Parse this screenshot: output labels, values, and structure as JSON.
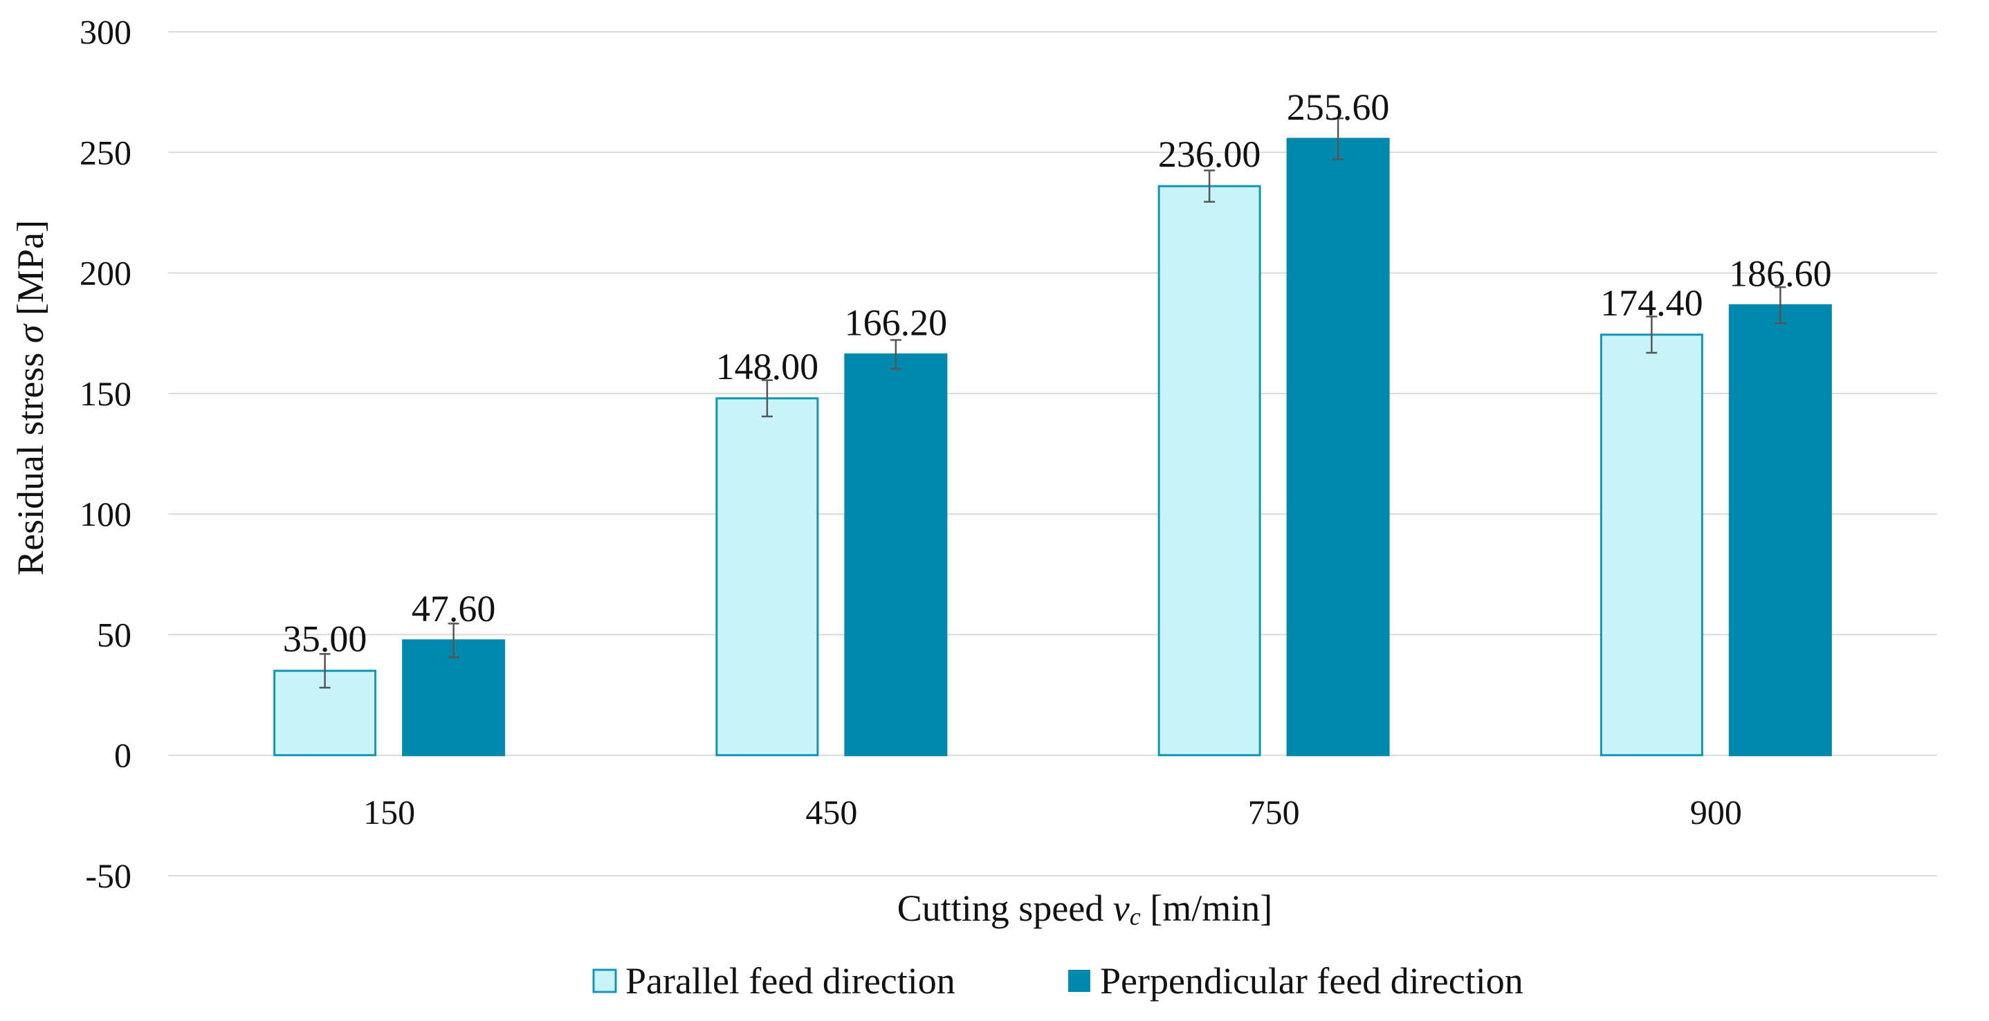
{
  "chart_data": {
    "type": "bar",
    "title": "",
    "xlabel": "Cutting speed",
    "xlabel_symbol": "v",
    "xlabel_subscript": "c",
    "xlabel_unit": "[m/min]",
    "ylabel": "Residual stress",
    "ylabel_symbol": "σ",
    "ylabel_unit": "[MPa]",
    "ylim": [
      -50,
      300
    ],
    "yticks": [
      -50,
      0,
      50,
      100,
      150,
      200,
      250,
      300
    ],
    "grid": true,
    "legend_position": "bottom",
    "categories": [
      "150",
      "450",
      "750",
      "900"
    ],
    "series": [
      {
        "name": "Parallel feed direction",
        "color": "#C8F4FA",
        "edge": "#1495B5",
        "values": [
          35.0,
          148.0,
          236.0,
          174.4
        ],
        "labels": [
          "35.00",
          "148.00",
          "236.00",
          "174.40"
        ],
        "errors": [
          7,
          7.5,
          6.5,
          7.5
        ]
      },
      {
        "name": "Perpendicular feed direction",
        "color": "#0089AC",
        "edge": "#0089AC",
        "values": [
          47.6,
          166.2,
          255.6,
          186.6
        ],
        "labels": [
          "47.60",
          "166.20",
          "255.60",
          "186.60"
        ],
        "errors": [
          7,
          6,
          8.5,
          7.5
        ]
      }
    ]
  }
}
